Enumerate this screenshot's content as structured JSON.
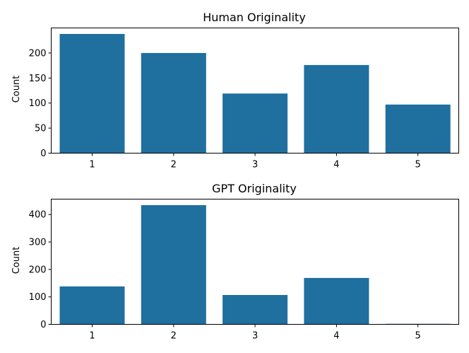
{
  "chart_data": [
    {
      "type": "bar",
      "title": "Human Originality",
      "xlabel": "",
      "ylabel": "Count",
      "categories": [
        "1",
        "2",
        "3",
        "4",
        "5"
      ],
      "values": [
        238,
        200,
        119,
        176,
        97
      ],
      "ylim": [
        0,
        250
      ],
      "yticks": [
        0,
        50,
        100,
        150,
        200
      ],
      "color": "#1f6f9f"
    },
    {
      "type": "bar",
      "title": "GPT Originality",
      "xlabel": "",
      "ylabel": "Count",
      "categories": [
        "1",
        "2",
        "3",
        "4",
        "5"
      ],
      "values": [
        138,
        434,
        107,
        169,
        2
      ],
      "ylim": [
        0,
        456
      ],
      "yticks": [
        0,
        100,
        200,
        300,
        400
      ],
      "color": "#1f6f9f"
    }
  ]
}
